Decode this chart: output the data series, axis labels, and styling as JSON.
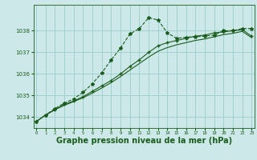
{
  "background_color": "#cce8e8",
  "grid_color": "#99cccc",
  "line_color": "#1a5c1a",
  "xlabel": "Graphe pression niveau de la mer (hPa)",
  "xlabel_fontsize": 7.0,
  "ylim": [
    1033.5,
    1039.2
  ],
  "yticks": [
    1034,
    1035,
    1036,
    1037,
    1038
  ],
  "xlim": [
    -0.3,
    23.3
  ],
  "xticks": [
    0,
    1,
    2,
    3,
    4,
    5,
    6,
    7,
    8,
    9,
    10,
    11,
    12,
    13,
    14,
    15,
    16,
    17,
    18,
    19,
    20,
    21,
    22,
    23
  ],
  "series1": [
    1033.8,
    1034.1,
    1034.4,
    1034.65,
    1034.85,
    1035.15,
    1035.55,
    1036.05,
    1036.65,
    1037.2,
    1037.85,
    1038.1,
    1038.6,
    1038.5,
    1037.9,
    1037.65,
    1037.7,
    1037.72,
    1037.75,
    1037.8,
    1038.0,
    1038.0,
    1038.1,
    1038.1
  ],
  "series2": [
    1033.8,
    1034.1,
    1034.35,
    1034.6,
    1034.75,
    1034.95,
    1035.2,
    1035.45,
    1035.7,
    1036.0,
    1036.35,
    1036.65,
    1037.0,
    1037.3,
    1037.45,
    1037.55,
    1037.65,
    1037.75,
    1037.8,
    1037.9,
    1037.95,
    1038.0,
    1038.05,
    1037.75
  ],
  "series3": [
    1033.8,
    1034.1,
    1034.35,
    1034.55,
    1034.72,
    1034.9,
    1035.12,
    1035.35,
    1035.6,
    1035.88,
    1036.18,
    1036.48,
    1036.78,
    1037.05,
    1037.22,
    1037.35,
    1037.45,
    1037.55,
    1037.62,
    1037.72,
    1037.82,
    1037.88,
    1037.97,
    1037.68
  ]
}
